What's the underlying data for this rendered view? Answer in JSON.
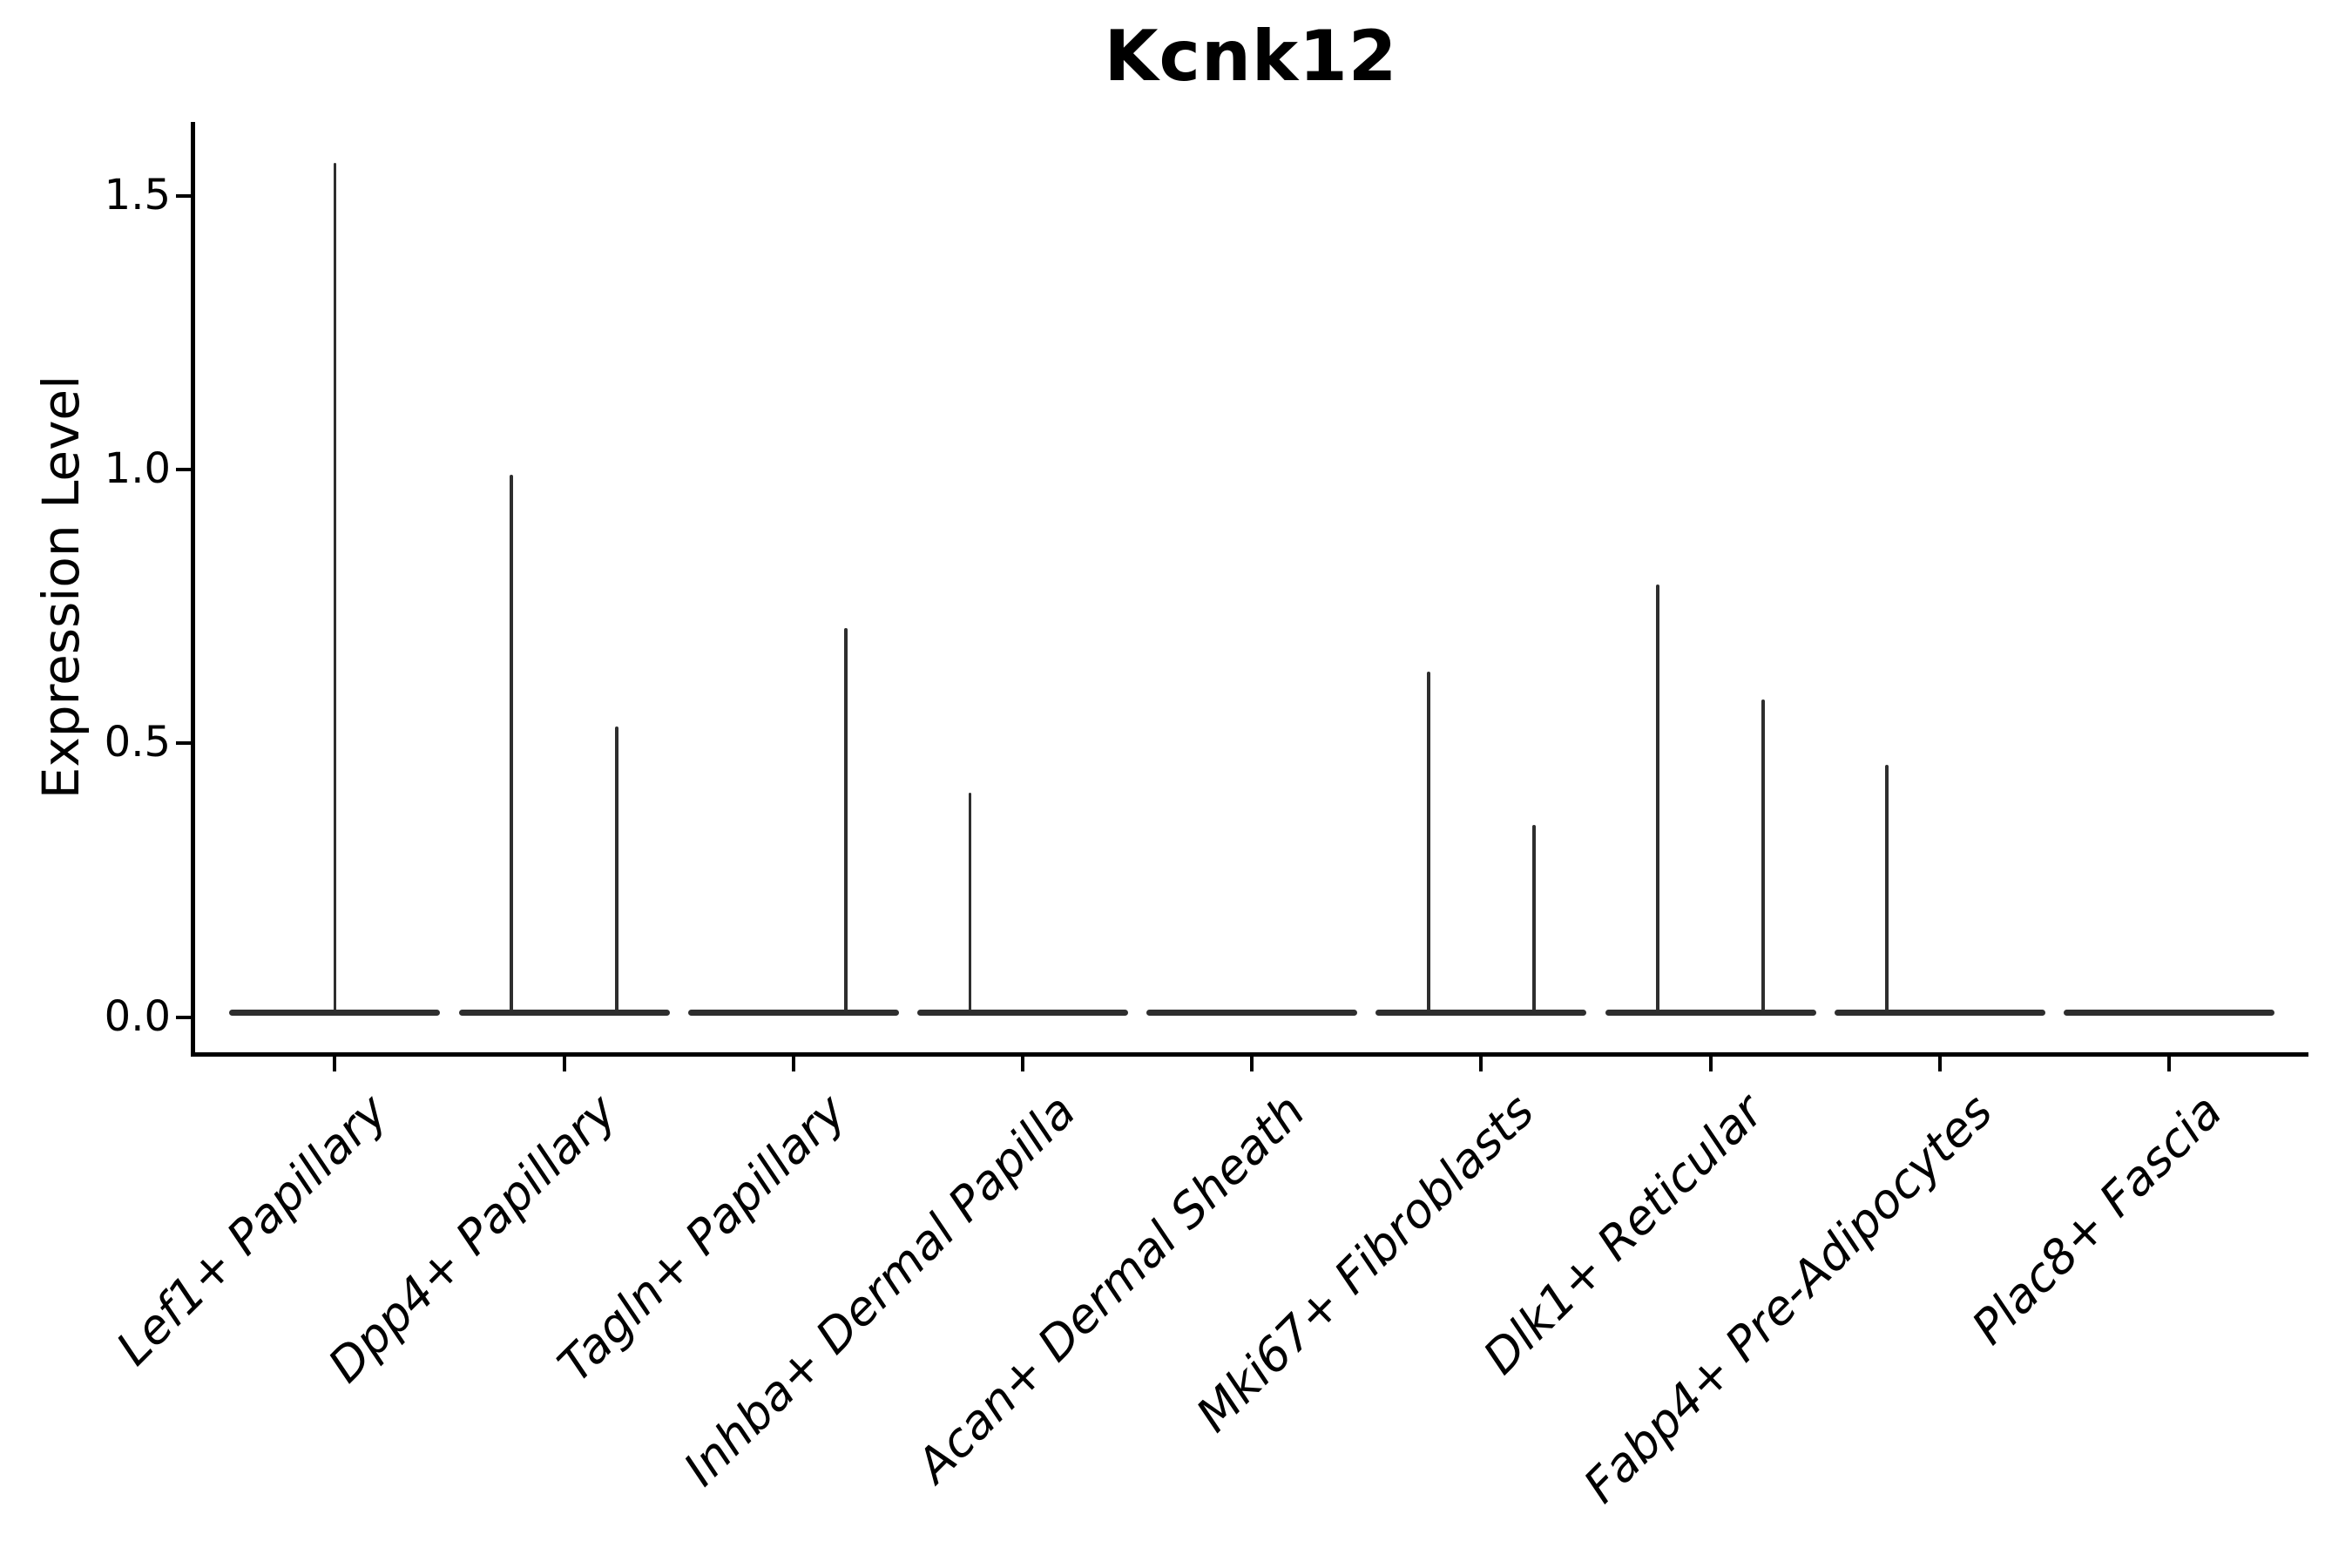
{
  "title": "Kcnk12",
  "colors": {
    "violin": "#2e2e2e",
    "axis": "#000000",
    "text": "#000000",
    "background": "#ffffff"
  },
  "y_axis": {
    "label": "Expression Level",
    "ticks": [
      {
        "label": "0.0",
        "value": 0.0
      },
      {
        "label": "0.5",
        "value": 0.5
      },
      {
        "label": "1.0",
        "value": 1.0
      },
      {
        "label": "1.5",
        "value": 1.5
      }
    ]
  },
  "chart_data": {
    "type": "violin",
    "title": "Kcnk12",
    "xlabel": "",
    "ylabel": "Expression Level",
    "ylim": [
      0,
      1.65
    ],
    "grid": false,
    "legend": null,
    "categories": [
      "Lef1+ Papillary",
      "Dpp4+ Papillary",
      "Tagln+ Papillary",
      "Inhba+ Dermal Papilla",
      "Acan+ Dermal Sheath",
      "Mki67+ Fibroblasts",
      "Dlk1+ Reticular",
      "Fabp4+ Pre-Adipocytes",
      "Plac8+ Fascia"
    ],
    "violins": [
      {
        "category": "Lef1+ Papillary",
        "baseline_value": 0.0,
        "spikes": [
          {
            "offset": 0.0,
            "max_expression": 1.56
          }
        ]
      },
      {
        "category": "Dpp4+ Papillary",
        "baseline_value": 0.0,
        "spikes": [
          {
            "offset": -0.23,
            "max_expression": 0.99
          },
          {
            "offset": 0.23,
            "max_expression": 0.53
          }
        ]
      },
      {
        "category": "Tagln+ Papillary",
        "baseline_value": 0.0,
        "spikes": [
          {
            "offset": 0.23,
            "max_expression": 0.71
          }
        ]
      },
      {
        "category": "Inhba+ Dermal Papilla",
        "baseline_value": 0.0,
        "spikes": [
          {
            "offset": -0.23,
            "max_expression": 0.41
          }
        ]
      },
      {
        "category": "Acan+ Dermal Sheath",
        "baseline_value": 0.0,
        "spikes": []
      },
      {
        "category": "Mki67+ Fibroblasts",
        "baseline_value": 0.0,
        "spikes": [
          {
            "offset": -0.23,
            "max_expression": 0.63
          },
          {
            "offset": 0.23,
            "max_expression": 0.35
          }
        ]
      },
      {
        "category": "Dlk1+ Reticular",
        "baseline_value": 0.0,
        "spikes": [
          {
            "offset": -0.23,
            "max_expression": 0.79
          },
          {
            "offset": 0.23,
            "max_expression": 0.58
          }
        ]
      },
      {
        "category": "Fabp4+ Pre-Adipocytes",
        "baseline_value": 0.0,
        "spikes": [
          {
            "offset": -0.23,
            "max_expression": 0.46
          }
        ]
      },
      {
        "category": "Plac8+ Fascia",
        "baseline_value": 0.0,
        "spikes": []
      }
    ]
  }
}
